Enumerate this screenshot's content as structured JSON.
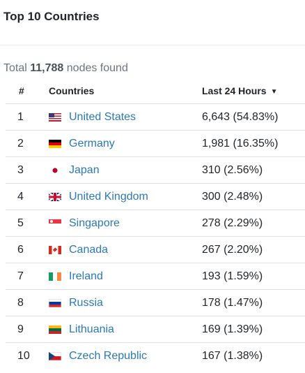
{
  "card": {
    "title": "Top 10 Countries"
  },
  "summary": {
    "prefix": "Total",
    "count": "11,788",
    "suffix": "nodes found"
  },
  "table": {
    "headers": {
      "rank": "#",
      "country": "Countries",
      "last24": "Last 24 Hours"
    },
    "sort_icon": "caret-down-icon",
    "rows": [
      {
        "rank": "1",
        "country": "United States",
        "flag": "us-flag-icon",
        "value": "6,643 (54.83%)"
      },
      {
        "rank": "2",
        "country": "Germany",
        "flag": "de-flag-icon",
        "value": "1,981 (16.35%)"
      },
      {
        "rank": "3",
        "country": "Japan",
        "flag": "jp-flag-icon",
        "value": "310 (2.56%)"
      },
      {
        "rank": "4",
        "country": "United Kingdom",
        "flag": "gb-flag-icon",
        "value": "300 (2.48%)"
      },
      {
        "rank": "5",
        "country": "Singapore",
        "flag": "sg-flag-icon",
        "value": "278 (2.29%)"
      },
      {
        "rank": "6",
        "country": "Canada",
        "flag": "ca-flag-icon",
        "value": "267 (2.20%)"
      },
      {
        "rank": "7",
        "country": "Ireland",
        "flag": "ie-flag-icon",
        "value": "193 (1.59%)"
      },
      {
        "rank": "8",
        "country": "Russia",
        "flag": "ru-flag-icon",
        "value": "178 (1.47%)"
      },
      {
        "rank": "9",
        "country": "Lithuania",
        "flag": "lt-flag-icon",
        "value": "169 (1.39%)"
      },
      {
        "rank": "10",
        "country": "Czech Republic",
        "flag": "cz-flag-icon",
        "value": "167 (1.38%)"
      }
    ]
  },
  "colors": {
    "link": "#2c79b7",
    "muted": "#6c757d",
    "border": "#dee2e6"
  }
}
